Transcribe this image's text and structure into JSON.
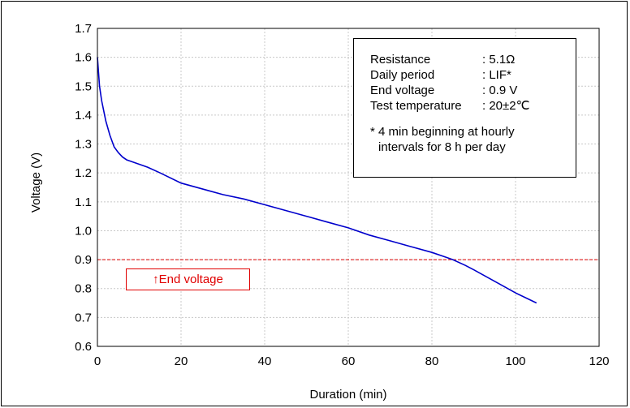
{
  "chart_data": {
    "type": "line",
    "xlabel": "Duration (min)",
    "ylabel": "Voltage (V)",
    "xlim": [
      0,
      120
    ],
    "ylim": [
      0.6,
      1.7
    ],
    "xticks": [
      0,
      20,
      40,
      60,
      80,
      100,
      120
    ],
    "yticks": [
      0.6,
      0.7,
      0.8,
      0.9,
      1.0,
      1.1,
      1.2,
      1.3,
      1.4,
      1.5,
      1.6,
      1.7
    ],
    "grid": true,
    "series": [
      {
        "color": "#0000cc",
        "x": [
          0,
          0.5,
          1,
          2,
          3,
          4,
          5,
          6,
          7,
          8,
          10,
          12,
          15,
          20,
          25,
          30,
          35,
          40,
          45,
          50,
          55,
          60,
          65,
          70,
          75,
          80,
          83,
          85,
          88,
          90,
          95,
          100,
          105
        ],
        "y": [
          1.6,
          1.5,
          1.45,
          1.38,
          1.33,
          1.29,
          1.27,
          1.255,
          1.245,
          1.24,
          1.23,
          1.22,
          1.2,
          1.165,
          1.145,
          1.125,
          1.11,
          1.09,
          1.07,
          1.05,
          1.03,
          1.01,
          0.985,
          0.965,
          0.945,
          0.925,
          0.91,
          0.9,
          0.88,
          0.865,
          0.825,
          0.785,
          0.75
        ]
      }
    ],
    "reference_line": {
      "y": 0.9,
      "color": "#e00000",
      "style": "dashed"
    },
    "end_voltage_label": "↑End voltage",
    "info_box": [
      {
        "key": "Resistance",
        "value": ": 5.1Ω"
      },
      {
        "key": "Daily period",
        "value": ": LIF*"
      },
      {
        "key": "End voltage",
        "value": ": 0.9 V"
      },
      {
        "key": "Test temperature",
        "value": ": 20±2℃"
      }
    ],
    "note_line1": "* 4 min beginning at hourly",
    "note_line2": "intervals for 8 h per day"
  }
}
